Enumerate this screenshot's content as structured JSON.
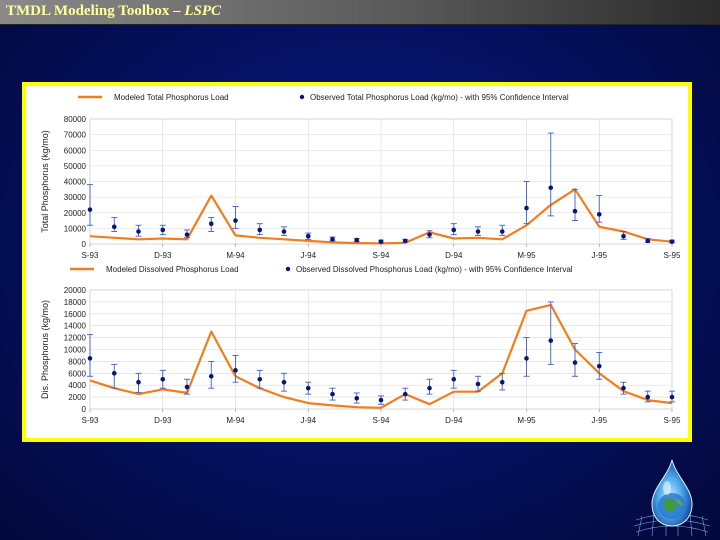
{
  "slide": {
    "title_main": "TMDL Modeling Toolbox – ",
    "title_italic": "LSPC"
  },
  "colors": {
    "modeled": "#f07d1e",
    "observed": "#0b1670",
    "errorbar": "#3f5fc4",
    "grid": "#d8d8d8",
    "frame": "#ffff00"
  },
  "logo": {
    "icon": "water-drop-globe-icon"
  },
  "chart_data": [
    {
      "type": "line",
      "title": "",
      "xlabel": "",
      "ylabel": "Total Phosphorus (kg/mo)",
      "ylim": [
        0,
        80000
      ],
      "yticks": [
        0,
        10000,
        20000,
        30000,
        40000,
        50000,
        60000,
        70000,
        80000
      ],
      "ytick_labels": [
        "0",
        "10000",
        "20000",
        "30000",
        "40000",
        "50000",
        "60000",
        "70000",
        "80000"
      ],
      "x_range": [
        0,
        24
      ],
      "xtick_positions": [
        0,
        3,
        6,
        9,
        12,
        15,
        18,
        21,
        24
      ],
      "xtick_labels": [
        "S-93",
        "D-93",
        "M-94",
        "J-94",
        "S-94",
        "D-94",
        "M-95",
        "J-95",
        "S-95"
      ],
      "grid": true,
      "legend_position": "top",
      "series": [
        {
          "name": "Modeled Total Phosphorus Load",
          "kind": "line",
          "x": [
            0,
            1,
            2,
            3,
            4,
            5,
            6,
            7,
            8,
            9,
            10,
            11,
            12,
            13,
            14,
            15,
            16,
            17,
            18,
            19,
            20,
            21,
            22,
            23,
            24
          ],
          "y": [
            5000,
            4000,
            3000,
            3500,
            3000,
            31000,
            5500,
            4000,
            3000,
            2000,
            1000,
            600,
            400,
            800,
            7500,
            3500,
            4000,
            3000,
            12000,
            25000,
            35000,
            11000,
            8000,
            3000,
            1500
          ]
        },
        {
          "name": "Observed Total Phosphorus Load (kg/mo) - with 95% Confidence Interval",
          "kind": "points",
          "x": [
            0,
            1,
            2,
            3,
            4,
            5,
            6,
            7,
            8,
            9,
            10,
            11,
            12,
            13,
            14,
            15,
            16,
            17,
            18,
            19,
            20,
            21,
            22,
            23,
            24
          ],
          "y": [
            22000,
            11000,
            8000,
            9000,
            6000,
            13000,
            15000,
            9000,
            8000,
            5000,
            3000,
            2500,
            1500,
            2000,
            6000,
            9000,
            8000,
            8000,
            23000,
            36000,
            21000,
            19000,
            5000,
            2000,
            1500
          ],
          "low": [
            12000,
            8000,
            5000,
            6000,
            4000,
            8000,
            10000,
            6000,
            5500,
            3000,
            2000,
            1500,
            800,
            1200,
            4000,
            6000,
            5500,
            5500,
            13000,
            18000,
            15000,
            14000,
            3000,
            1000,
            800
          ],
          "high": [
            38000,
            17000,
            12000,
            12000,
            9000,
            17000,
            24000,
            13000,
            11000,
            7000,
            4500,
            3500,
            2500,
            3000,
            8500,
            13000,
            11000,
            12000,
            40000,
            71000,
            35000,
            31000,
            8000,
            3500,
            2500
          ]
        }
      ]
    },
    {
      "type": "line",
      "title": "",
      "xlabel": "",
      "ylabel": "Dis. Phosphorus (kg/mo)",
      "ylim": [
        0,
        20000
      ],
      "yticks": [
        0,
        2000,
        4000,
        6000,
        8000,
        10000,
        12000,
        14000,
        16000,
        18000,
        20000
      ],
      "ytick_labels": [
        "0",
        "2000",
        "4000",
        "6000",
        "8000",
        "10000",
        "12000",
        "14000",
        "16000",
        "18000",
        "20000"
      ],
      "x_range": [
        0,
        24
      ],
      "xtick_positions": [
        0,
        3,
        6,
        9,
        12,
        15,
        18,
        21,
        24
      ],
      "xtick_labels": [
        "S-93",
        "D-93",
        "M-94",
        "J-94",
        "S-94",
        "D-94",
        "M-95",
        "J-95",
        "S-95"
      ],
      "grid": true,
      "legend_position": "top",
      "series": [
        {
          "name": "Modeled Dissolved Phosphorus Load",
          "kind": "line",
          "x": [
            0,
            1,
            2,
            3,
            4,
            5,
            6,
            7,
            8,
            9,
            10,
            11,
            12,
            13,
            14,
            15,
            16,
            17,
            18,
            19,
            20,
            21,
            22,
            23,
            24
          ],
          "y": [
            4800,
            3500,
            2500,
            3300,
            2700,
            13000,
            5500,
            3500,
            2000,
            1000,
            600,
            300,
            200,
            2500,
            800,
            2900,
            2900,
            6000,
            16500,
            17500,
            10000,
            6000,
            3000,
            1500,
            1000
          ]
        },
        {
          "name": "Observed Dissolved Phosphorus Load (kg/mo) - with 95% Confidence Interval",
          "kind": "points",
          "x": [
            0,
            1,
            2,
            3,
            4,
            5,
            6,
            7,
            8,
            9,
            10,
            11,
            12,
            13,
            14,
            15,
            16,
            17,
            18,
            19,
            20,
            21,
            22,
            23,
            24
          ],
          "y": [
            8500,
            6000,
            4500,
            5000,
            3700,
            5500,
            6500,
            5000,
            4500,
            3500,
            2500,
            1800,
            1500,
            2500,
            3500,
            5000,
            4200,
            4500,
            8500,
            11500,
            7800,
            7200,
            3500,
            2000,
            2000
          ],
          "low": [
            5500,
            3500,
            2800,
            3500,
            2500,
            3500,
            4500,
            3500,
            3000,
            2500,
            1500,
            1000,
            800,
            1500,
            2500,
            3500,
            3000,
            3200,
            5500,
            7500,
            5500,
            5000,
            2500,
            1200,
            1200
          ],
          "high": [
            12500,
            7500,
            6000,
            6500,
            5000,
            8000,
            9000,
            6500,
            6000,
            4500,
            3500,
            2700,
            2200,
            3500,
            5000,
            6500,
            5500,
            6000,
            12000,
            18000,
            11000,
            9500,
            4500,
            3000,
            3000
          ]
        }
      ]
    }
  ]
}
